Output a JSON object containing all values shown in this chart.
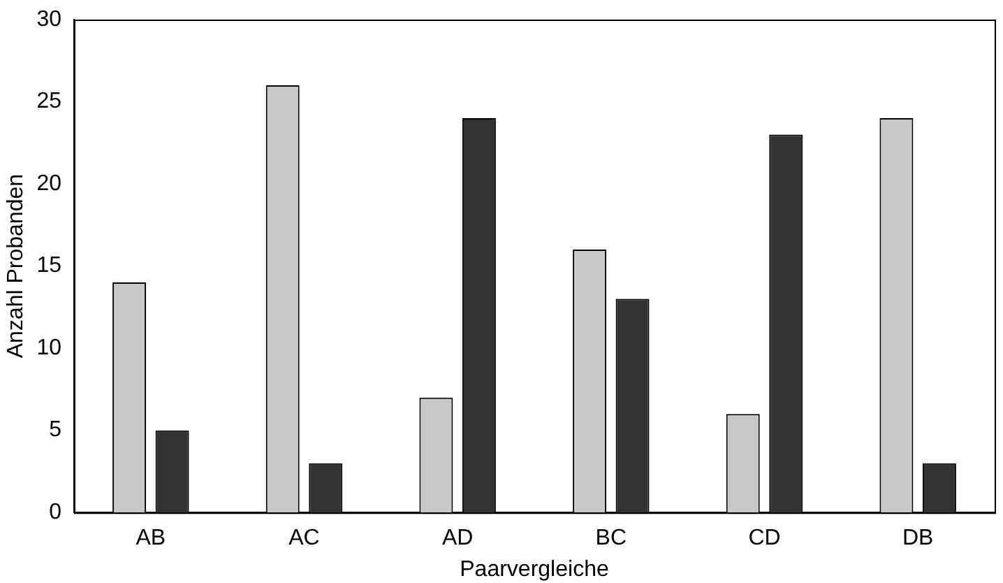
{
  "chart_data": {
    "type": "bar",
    "xlabel": "Paarvergleiche",
    "ylabel": "Anzahl Probanden",
    "categories": [
      "AB",
      "AC",
      "AD",
      "BC",
      "CD",
      "DB"
    ],
    "series": [
      {
        "color": "#c8c8c8",
        "values": [
          14,
          26,
          7,
          16,
          6,
          24
        ]
      },
      {
        "color": "#333333",
        "values": [
          5,
          3,
          24,
          13,
          23,
          3
        ]
      }
    ],
    "ylim": [
      0,
      30
    ],
    "yticks": [
      0,
      5,
      10,
      15,
      20,
      25,
      30
    ],
    "grid": false,
    "legend": false
  }
}
